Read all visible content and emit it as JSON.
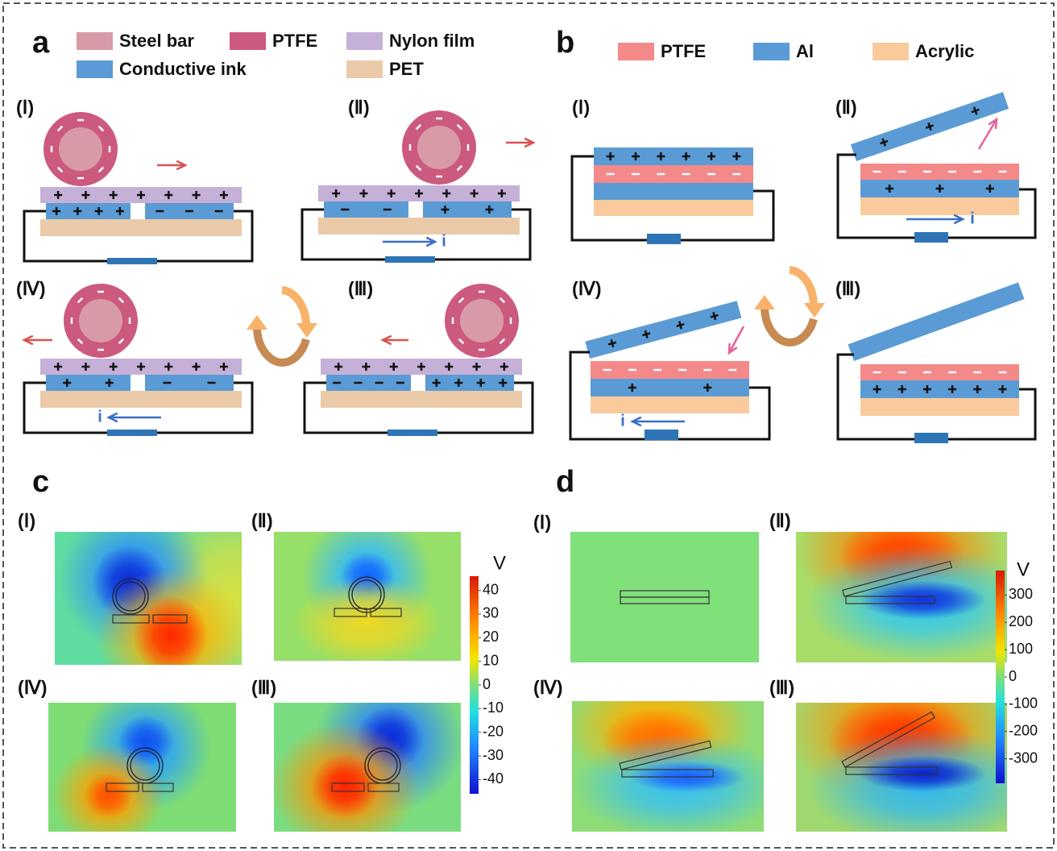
{
  "panels": {
    "a": {
      "label": "a",
      "legend": [
        {
          "name": "Steel bar",
          "color": "#d99aa8"
        },
        {
          "name": "PTFE",
          "color": "#cc5a7e"
        },
        {
          "name": "Nylon film",
          "color": "#c5b0d8"
        },
        {
          "name": "Conductive ink",
          "color": "#5b9bd5"
        },
        {
          "name": "PET",
          "color": "#eacaa8"
        }
      ],
      "stages": [
        {
          "label": "(Ⅰ)"
        },
        {
          "label": "(Ⅱ)",
          "current": "i"
        },
        {
          "label": "(Ⅳ)",
          "current": "i"
        },
        {
          "label": "(Ⅲ)"
        }
      ]
    },
    "b": {
      "label": "b",
      "legend": [
        {
          "name": "PTFE",
          "color": "#f4898a"
        },
        {
          "name": "Al",
          "color": "#5b9bd5"
        },
        {
          "name": "Acrylic",
          "color": "#f9cb9c"
        }
      ],
      "stages": [
        {
          "label": "(Ⅰ)"
        },
        {
          "label": "(Ⅱ)",
          "current": "i"
        },
        {
          "label": "(Ⅳ)",
          "current": "i"
        },
        {
          "label": "(Ⅲ)"
        }
      ]
    },
    "c": {
      "label": "c",
      "stages": [
        {
          "label": "(Ⅰ)"
        },
        {
          "label": "(Ⅱ)"
        },
        {
          "label": "(Ⅳ)"
        },
        {
          "label": "(Ⅲ)"
        }
      ],
      "colorbar": {
        "unit": "V",
        "lim": [
          -46,
          46
        ],
        "ticks": [
          40,
          30,
          20,
          10,
          0,
          -10,
          -20,
          -30,
          -40
        ]
      }
    },
    "d": {
      "label": "d",
      "stages": [
        {
          "label": "(Ⅰ)"
        },
        {
          "label": "(Ⅱ)"
        },
        {
          "label": "(Ⅳ)"
        },
        {
          "label": "(Ⅲ)"
        }
      ],
      "colorbar": {
        "unit": "V",
        "lim": [
          -390,
          390
        ],
        "ticks": [
          300,
          200,
          100,
          0,
          -100,
          -200,
          -300
        ]
      }
    }
  }
}
